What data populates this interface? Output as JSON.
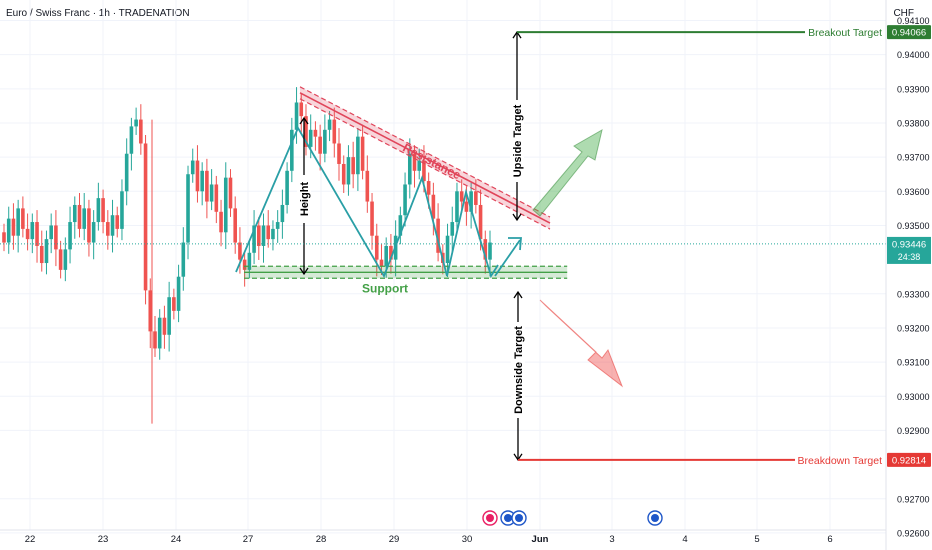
{
  "header": {
    "title": "Euro / Swiss Franc · 1h · TRADENATION",
    "currency": "CHF"
  },
  "colors": {
    "up": "#26a69a",
    "down": "#ef5350",
    "pattern": "#2a9fa6",
    "resistance": "#e0455a",
    "support": "#43a047",
    "breakout": "#2e7d32",
    "breakdown": "#e53935"
  },
  "chart_data": {
    "type": "candlestick",
    "title": "",
    "ylim": [
      0.9255,
      0.9416
    ],
    "x_ticks": [
      "22",
      "23",
      "24",
      "27",
      "28",
      "29",
      "30",
      "Jun",
      "3",
      "4",
      "5",
      "6"
    ],
    "y_ticks": [
      "0.92600",
      "0.92700",
      "0.92900",
      "0.93000",
      "0.93100",
      "0.93200",
      "0.93300",
      "0.93500",
      "0.93600",
      "0.93700",
      "0.93800",
      "0.93900",
      "0.94000",
      "0.94100"
    ],
    "current_price": {
      "label": "0.93446",
      "value": 0.93446,
      "countdown": "24:38"
    },
    "levels": [
      {
        "name": "Breakout Target",
        "label": "0.94066",
        "value": 0.94066
      },
      {
        "name": "Breakdown Target",
        "label": "0.92814",
        "value": 0.92814
      }
    ],
    "annotations": {
      "resistance": "Resistance",
      "support": "Support",
      "height": "Height",
      "upside": "Upside Target",
      "downside": "Downside Target"
    },
    "resistance_line": {
      "from": [
        27.75,
        0.939
      ],
      "to": [
        31.1,
        0.9351
      ]
    },
    "support_level": 0.93363,
    "support_span": [
      26.6,
      31.1
    ],
    "zigzag": [
      [
        26.7,
        0.9338
      ],
      [
        27.5,
        0.9388
      ],
      [
        28.5,
        0.9337
      ],
      [
        29.45,
        0.937
      ],
      [
        30.0,
        0.9338
      ],
      [
        30.35,
        0.9362
      ],
      [
        30.65,
        0.9336
      ],
      [
        31.0,
        0.9348
      ]
    ],
    "candles": [
      [
        0.9348,
        0.9345
      ],
      [
        0.9345,
        0.9352
      ],
      [
        0.9352,
        0.9347
      ],
      [
        0.9347,
        0.9355
      ],
      [
        0.9355,
        0.9349
      ],
      [
        0.9349,
        0.9346
      ],
      [
        0.9346,
        0.9351
      ],
      [
        0.9351,
        0.9344
      ],
      [
        0.9344,
        0.9339
      ],
      [
        0.9339,
        0.9346
      ],
      [
        0.9346,
        0.935
      ],
      [
        0.935,
        0.9343
      ],
      [
        0.9343,
        0.9337
      ],
      [
        0.9337,
        0.9343
      ],
      [
        0.9343,
        0.9351
      ],
      [
        0.9351,
        0.9356
      ],
      [
        0.9356,
        0.9349
      ],
      [
        0.9349,
        0.9355
      ],
      [
        0.9355,
        0.9345
      ],
      [
        0.9345,
        0.9351
      ],
      [
        0.9351,
        0.9358
      ],
      [
        0.9358,
        0.9351
      ],
      [
        0.9351,
        0.9347
      ],
      [
        0.9347,
        0.9353
      ],
      [
        0.9353,
        0.9349
      ],
      [
        0.9349,
        0.936
      ],
      [
        0.936,
        0.9371
      ],
      [
        0.9371,
        0.9379
      ],
      [
        0.9379,
        0.9381
      ],
      [
        0.9381,
        0.9374
      ],
      [
        0.9374,
        0.9331
      ],
      [
        0.9331,
        0.9319
      ],
      [
        0.9319,
        0.9314
      ],
      [
        0.9314,
        0.9323
      ],
      [
        0.9323,
        0.9318
      ],
      [
        0.9318,
        0.9329
      ],
      [
        0.9329,
        0.9325
      ],
      [
        0.9325,
        0.9335
      ],
      [
        0.9335,
        0.9345
      ],
      [
        0.9345,
        0.9365
      ],
      [
        0.9365,
        0.9369
      ],
      [
        0.9369,
        0.936
      ],
      [
        0.936,
        0.9366
      ],
      [
        0.9366,
        0.9357
      ],
      [
        0.9357,
        0.9362
      ],
      [
        0.9362,
        0.9354
      ],
      [
        0.9354,
        0.9348
      ],
      [
        0.9348,
        0.9364
      ],
      [
        0.9364,
        0.9355
      ],
      [
        0.9355,
        0.9345
      ],
      [
        0.9345,
        0.934
      ],
      [
        0.934,
        0.9337
      ],
      [
        0.9337,
        0.9342
      ],
      [
        0.9342,
        0.935
      ],
      [
        0.935,
        0.9344
      ],
      [
        0.9344,
        0.935
      ],
      [
        0.935,
        0.9346
      ],
      [
        0.9346,
        0.9349
      ],
      [
        0.9349,
        0.9351
      ],
      [
        0.9351,
        0.9356
      ],
      [
        0.9356,
        0.9366
      ],
      [
        0.9366,
        0.9378
      ],
      [
        0.9378,
        0.9386
      ],
      [
        0.9386,
        0.9382
      ],
      [
        0.9382,
        0.9373
      ],
      [
        0.9373,
        0.9378
      ],
      [
        0.9378,
        0.9376
      ],
      [
        0.9376,
        0.9371
      ],
      [
        0.9371,
        0.9378
      ],
      [
        0.9378,
        0.9381
      ],
      [
        0.9381,
        0.9374
      ],
      [
        0.9374,
        0.9368
      ],
      [
        0.9368,
        0.9362
      ],
      [
        0.9362,
        0.937
      ],
      [
        0.937,
        0.9365
      ],
      [
        0.9365,
        0.9376
      ],
      [
        0.9376,
        0.9366
      ],
      [
        0.9366,
        0.9357
      ],
      [
        0.9357,
        0.9347
      ],
      [
        0.9347,
        0.934
      ],
      [
        0.934,
        0.9338
      ],
      [
        0.9338,
        0.9344
      ],
      [
        0.9344,
        0.934
      ],
      [
        0.934,
        0.9347
      ],
      [
        0.9347,
        0.9353
      ],
      [
        0.9353,
        0.9362
      ],
      [
        0.9362,
        0.9371
      ],
      [
        0.9371,
        0.9366
      ],
      [
        0.9366,
        0.9369
      ],
      [
        0.9369,
        0.9363
      ],
      [
        0.9363,
        0.9359
      ],
      [
        0.9359,
        0.9352
      ],
      [
        0.9352,
        0.9342
      ],
      [
        0.9342,
        0.9339
      ],
      [
        0.9339,
        0.9347
      ],
      [
        0.9347,
        0.9351
      ],
      [
        0.9351,
        0.936
      ],
      [
        0.936,
        0.9357
      ],
      [
        0.9357,
        0.9354
      ],
      [
        0.9354,
        0.936
      ],
      [
        0.936,
        0.9356
      ],
      [
        0.9356,
        0.9346
      ],
      [
        0.9346,
        0.934
      ],
      [
        0.934,
        0.9345
      ]
    ]
  }
}
